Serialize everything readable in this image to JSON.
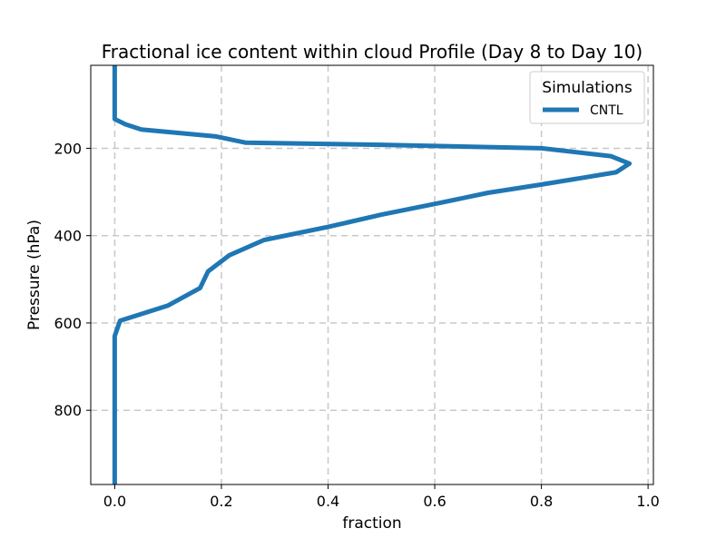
{
  "chart_data": {
    "type": "line",
    "title": "Fractional ice content within cloud Profile (Day 8 to Day 10)",
    "xlabel": "fraction",
    "ylabel": "Pressure (hPa)",
    "xlim": [
      -0.045,
      1.01
    ],
    "ylim": [
      970,
      10
    ],
    "y_inverted": true,
    "grid": true,
    "xticks": [
      0.0,
      0.2,
      0.4,
      0.6,
      0.8,
      1.0
    ],
    "xtick_labels": [
      "0.0",
      "0.2",
      "0.4",
      "0.6",
      "0.8",
      "1.0"
    ],
    "yticks": [
      200,
      400,
      600,
      800
    ],
    "ytick_labels": [
      "200",
      "400",
      "600",
      "800"
    ],
    "legend": {
      "title": "Simulations",
      "placement": "top-right"
    },
    "series": [
      {
        "name": "CNTL",
        "color": "#1f77b4",
        "points": [
          {
            "x": 0.0,
            "y": 10
          },
          {
            "x": 0.0,
            "y": 133
          },
          {
            "x": 0.02,
            "y": 145
          },
          {
            "x": 0.05,
            "y": 157
          },
          {
            "x": 0.19,
            "y": 173
          },
          {
            "x": 0.245,
            "y": 187
          },
          {
            "x": 0.5,
            "y": 192
          },
          {
            "x": 0.8,
            "y": 200
          },
          {
            "x": 0.93,
            "y": 218
          },
          {
            "x": 0.965,
            "y": 235
          },
          {
            "x": 0.94,
            "y": 255
          },
          {
            "x": 0.8,
            "y": 283
          },
          {
            "x": 0.7,
            "y": 302
          },
          {
            "x": 0.61,
            "y": 325
          },
          {
            "x": 0.5,
            "y": 352
          },
          {
            "x": 0.4,
            "y": 380
          },
          {
            "x": 0.28,
            "y": 410
          },
          {
            "x": 0.215,
            "y": 445
          },
          {
            "x": 0.175,
            "y": 482
          },
          {
            "x": 0.16,
            "y": 520
          },
          {
            "x": 0.1,
            "y": 560
          },
          {
            "x": 0.01,
            "y": 595
          },
          {
            "x": 0.0,
            "y": 630
          },
          {
            "x": 0.0,
            "y": 970
          }
        ]
      }
    ]
  }
}
